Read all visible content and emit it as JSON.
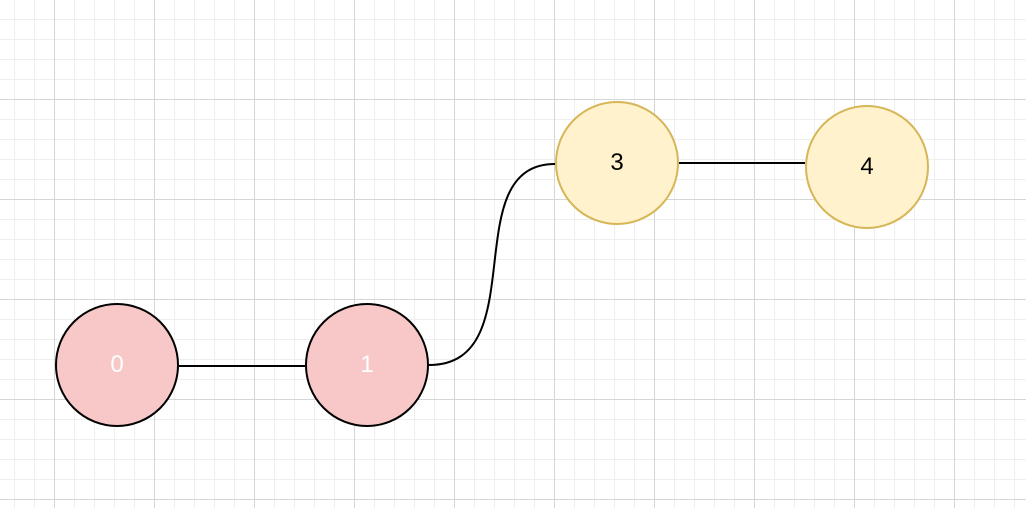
{
  "diagram": {
    "nodes": [
      {
        "id": "0",
        "label": "0",
        "group": "red",
        "fill": "#f8c8c8",
        "stroke": "#000000",
        "text_color": "#ffffff"
      },
      {
        "id": "1",
        "label": "1",
        "group": "red",
        "fill": "#f8c8c8",
        "stroke": "#000000",
        "text_color": "#ffffff"
      },
      {
        "id": "3",
        "label": "3",
        "group": "yellow",
        "fill": "#fff2cc",
        "stroke": "#d6b656",
        "text_color": "#000000"
      },
      {
        "id": "4",
        "label": "4",
        "group": "yellow",
        "fill": "#fff2cc",
        "stroke": "#d6b656",
        "text_color": "#000000"
      }
    ],
    "edges": [
      {
        "from": "0",
        "to": "1",
        "style": "straight"
      },
      {
        "from": "1",
        "to": "3",
        "style": "curved"
      },
      {
        "from": "3",
        "to": "4",
        "style": "straight"
      }
    ],
    "edge_color": "#000000",
    "grid": true
  }
}
